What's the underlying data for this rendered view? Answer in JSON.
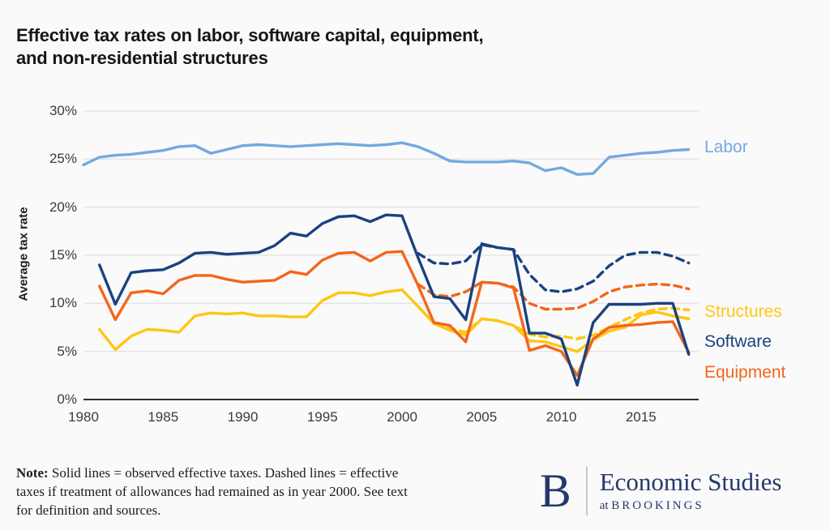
{
  "title": {
    "line1": "Effective tax rates on labor, software capital, equipment,",
    "line2": "and non-residential structures"
  },
  "chart_data": {
    "type": "line",
    "title": "Effective tax rates on labor, software capital, equipment, and non-residential structures",
    "xlabel": "",
    "ylabel": "Average tax rate",
    "ylim": [
      0,
      30
    ],
    "xlim": [
      1980,
      2018.6
    ],
    "grid": "horizontal",
    "legend_position": "right-annotations",
    "y_ticks": [
      {
        "value": 0,
        "label": "0%"
      },
      {
        "value": 5,
        "label": "5%"
      },
      {
        "value": 10,
        "label": "10%"
      },
      {
        "value": 15,
        "label": "15%"
      },
      {
        "value": 20,
        "label": "20%"
      },
      {
        "value": 25,
        "label": "25%"
      },
      {
        "value": 30,
        "label": "30%"
      }
    ],
    "x_ticks": [
      {
        "value": 1980,
        "label": "1980"
      },
      {
        "value": 1985,
        "label": "1985"
      },
      {
        "value": 1990,
        "label": "1990"
      },
      {
        "value": 1995,
        "label": "1995"
      },
      {
        "value": 2000,
        "label": "2000"
      },
      {
        "value": 2005,
        "label": "2005"
      },
      {
        "value": 2010,
        "label": "2010"
      },
      {
        "value": 2015,
        "label": "2015"
      }
    ],
    "series": [
      {
        "name": "Structures (counterfactual, year-2000 allowances)",
        "short": "structures-dashed",
        "color": "#FFC613",
        "dash": true,
        "start_year": 2001,
        "values": [
          9.7,
          8.0,
          7.4,
          7.0,
          8.4,
          8.2,
          7.7,
          6.8,
          6.5,
          6.6,
          6.3,
          6.7,
          7.5,
          8.3,
          9.0,
          9.4,
          9.5,
          9.3
        ]
      },
      {
        "name": "Equipment (counterfactual, year-2000 allowances)",
        "short": "equipment-dashed",
        "color": "#F4651C",
        "dash": true,
        "start_year": 2001,
        "values": [
          12.0,
          10.9,
          10.7,
          11.2,
          12.2,
          12.1,
          11.7,
          10.0,
          9.4,
          9.4,
          9.5,
          10.2,
          11.2,
          11.7,
          11.9,
          12.0,
          11.9,
          11.5
        ]
      },
      {
        "name": "Software (counterfactual, year-2000 allowances)",
        "short": "software-dashed",
        "color": "#1A4280",
        "dash": true,
        "start_year": 2001,
        "values": [
          15.2,
          14.2,
          14.1,
          14.4,
          16.1,
          15.8,
          15.6,
          13.0,
          11.4,
          11.2,
          11.5,
          12.3,
          13.9,
          15.0,
          15.3,
          15.3,
          14.9,
          14.2
        ]
      },
      {
        "name": "Structures (observed)",
        "short": "structures-solid",
        "color": "#FFC613",
        "dash": false,
        "start_year": 1981,
        "values": [
          7.3,
          5.2,
          6.6,
          7.3,
          7.2,
          7.0,
          8.7,
          9.0,
          8.9,
          9.0,
          8.7,
          8.7,
          8.6,
          8.6,
          10.3,
          11.1,
          11.1,
          10.8,
          11.2,
          11.4,
          9.7,
          7.9,
          7.2,
          6.7,
          8.4,
          8.2,
          7.7,
          6.1,
          6.0,
          5.5,
          5.0,
          6.2,
          7.1,
          7.5,
          8.8,
          9.1,
          8.7,
          8.4
        ]
      },
      {
        "name": "Equipment (observed)",
        "short": "equipment-solid",
        "color": "#F4651C",
        "dash": false,
        "start_year": 1981,
        "values": [
          11.8,
          8.3,
          11.1,
          11.3,
          11.0,
          12.4,
          12.9,
          12.9,
          12.5,
          12.2,
          12.3,
          12.4,
          13.3,
          13.0,
          14.5,
          15.2,
          15.3,
          14.4,
          15.3,
          15.4,
          11.9,
          8.0,
          7.7,
          6.0,
          12.2,
          12.1,
          11.6,
          5.1,
          5.6,
          5.0,
          2.5,
          6.3,
          7.5,
          7.7,
          7.8,
          8.0,
          8.1,
          4.9
        ]
      },
      {
        "name": "Software (observed)",
        "short": "software-solid",
        "color": "#1A4280",
        "dash": false,
        "start_year": 1981,
        "values": [
          14.0,
          9.9,
          13.2,
          13.4,
          13.5,
          14.2,
          15.2,
          15.3,
          15.1,
          15.2,
          15.3,
          16.0,
          17.3,
          17.0,
          18.3,
          19.0,
          19.1,
          18.5,
          19.2,
          19.1,
          14.8,
          10.7,
          10.5,
          8.3,
          16.2,
          15.8,
          15.6,
          6.9,
          6.9,
          6.3,
          1.5,
          8.0,
          9.9,
          9.9,
          9.9,
          10.0,
          10.0,
          4.7
        ]
      },
      {
        "name": "Labor",
        "short": "labor",
        "color": "#74A9E0",
        "dash": false,
        "start_year": 1980,
        "values": [
          24.4,
          25.2,
          25.4,
          25.5,
          25.7,
          25.9,
          26.3,
          26.4,
          25.6,
          26.0,
          26.4,
          26.5,
          26.4,
          26.3,
          26.4,
          26.5,
          26.6,
          26.5,
          26.4,
          26.5,
          26.7,
          26.3,
          25.6,
          24.8,
          24.7,
          24.7,
          24.7,
          24.8,
          24.6,
          23.8,
          24.1,
          23.4,
          23.5,
          25.2,
          25.4,
          25.6,
          25.7,
          25.9,
          26.0
        ]
      }
    ],
    "annotations": [
      {
        "label": "Labor",
        "color": "#74A9E0",
        "x": 2019.0,
        "y": 26.2
      },
      {
        "label": "Structures",
        "color": "#FFC613",
        "x": 2019.0,
        "y": 9.1
      },
      {
        "label": "Software",
        "color": "#1A4280",
        "x": 2019.0,
        "y": 6.0
      },
      {
        "label": "Equipment",
        "color": "#F4651C",
        "x": 2019.0,
        "y": 2.8
      }
    ],
    "colors": {
      "axis": "#2f2f2f",
      "gridline": "#e4e4e4"
    }
  },
  "note": {
    "prefix": "Note:",
    "line1": " Solid lines = observed effective taxes. Dashed lines = effective",
    "line2": "taxes if treatment of allowances had remained as in year 2000. See text",
    "line3": "for definition and sources."
  },
  "logo": {
    "b": "B",
    "primary": "Economic Studies",
    "secondary_prefix": "at ",
    "secondary": "BROOKINGS"
  }
}
